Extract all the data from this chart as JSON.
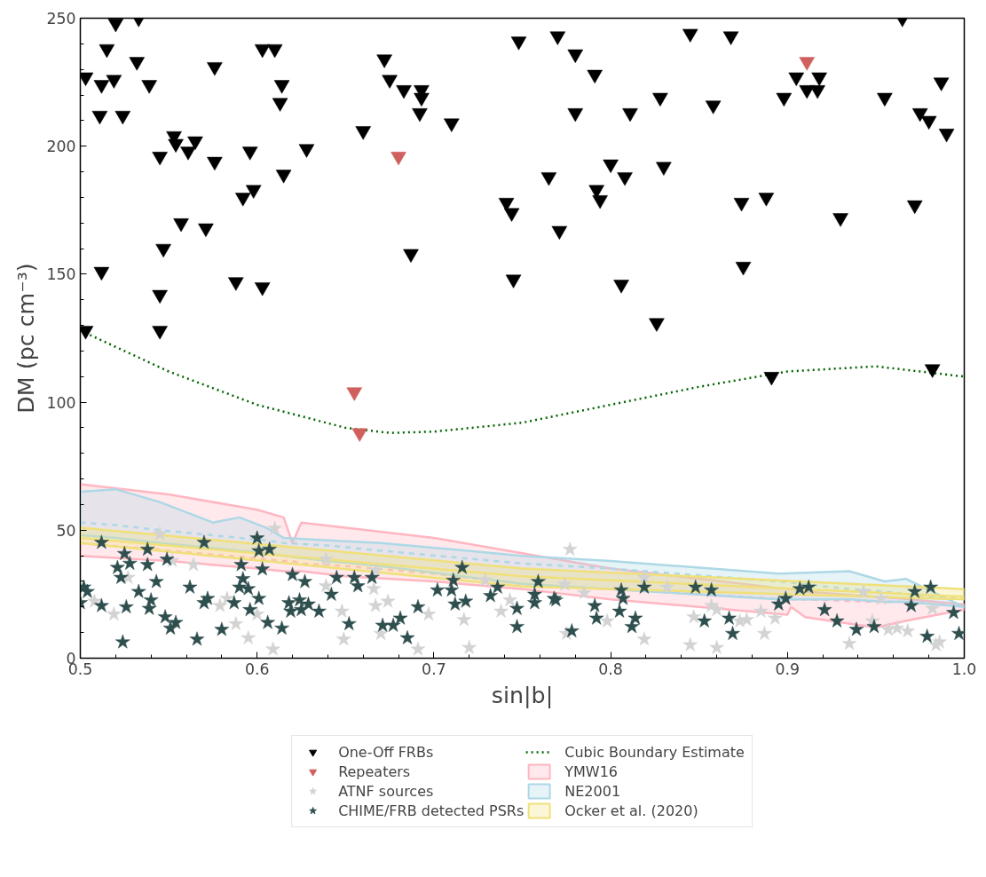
{
  "chart_data": {
    "type": "scatter",
    "xlabel": "sin|b|",
    "ylabel": "DM (pc cm⁻³)",
    "xlim": [
      0.5,
      1.0
    ],
    "xticks": [
      {
        "value": 0.5,
        "label": "0.5"
      },
      {
        "value": 0.6,
        "label": "0.6"
      },
      {
        "value": 0.7,
        "label": "0.7"
      },
      {
        "value": 0.8,
        "label": "0.8"
      },
      {
        "value": 0.9,
        "label": "0.9"
      },
      {
        "value": 1.0,
        "label": "1.0"
      }
    ],
    "ylim": [
      0,
      250
    ],
    "yticks": [
      0,
      50,
      100,
      150,
      200,
      250
    ],
    "grid": false,
    "legend": "bottom",
    "series": [
      {
        "name": "One-Off FRBs",
        "color": "#000000",
        "marker": "triangle",
        "x": [
          0.503,
          0.512,
          0.515,
          0.52,
          0.519,
          0.511,
          0.524,
          0.532,
          0.539,
          0.533,
          0.545,
          0.553,
          0.554,
          0.561,
          0.565,
          0.557,
          0.547,
          0.545,
          0.545,
          0.503,
          0.512,
          0.576,
          0.576,
          0.571,
          0.588,
          0.592,
          0.596,
          0.598,
          0.603,
          0.603,
          0.61,
          0.614,
          0.613,
          0.615,
          0.628,
          0.66,
          0.672,
          0.675,
          0.683,
          0.693,
          0.693,
          0.692,
          0.687,
          0.71,
          0.748,
          0.741,
          0.744,
          0.745,
          0.765,
          0.77,
          0.771,
          0.78,
          0.78,
          0.791,
          0.792,
          0.794,
          0.8,
          0.806,
          0.808,
          0.811,
          0.828,
          0.83,
          0.826,
          0.845,
          0.858,
          0.868,
          0.874,
          0.875,
          0.888,
          0.891,
          0.898,
          0.905,
          0.911,
          0.917,
          0.918,
          0.93,
          0.955,
          0.965,
          0.975,
          0.98,
          0.987,
          0.99,
          0.972,
          0.982
        ],
        "values": [
          227,
          224,
          238,
          248,
          226,
          212,
          212,
          233,
          224,
          250,
          196,
          204,
          201,
          198,
          202,
          170,
          160,
          142,
          128,
          128,
          151,
          231,
          194,
          168,
          147,
          180,
          198,
          183,
          145,
          238,
          238,
          224,
          217,
          189,
          199,
          206,
          234,
          226,
          222,
          222,
          219,
          213,
          158,
          209,
          241,
          178,
          174,
          148,
          188,
          243,
          167,
          236,
          213,
          228,
          183,
          179,
          193,
          146,
          188,
          213,
          219,
          192,
          131,
          244,
          216,
          243,
          178,
          153,
          180,
          110,
          219,
          227,
          222,
          222,
          227,
          172,
          219,
          250,
          213,
          210,
          225,
          205,
          177,
          113
        ]
      },
      {
        "name": "Repeaters",
        "color": "#d0605e",
        "marker": "triangle",
        "x": [
          0.68,
          0.655,
          0.658,
          0.911
        ],
        "values": [
          196,
          104,
          88,
          233
        ]
      },
      {
        "name": "ATNF sources",
        "color": "#d3d3d3",
        "marker": "star",
        "x": [
          0.545,
          0.564,
          0.61,
          0.639,
          0.519,
          0.527,
          0.508,
          0.552,
          0.579,
          0.583,
          0.588,
          0.595,
          0.6,
          0.609,
          0.639,
          0.648,
          0.649,
          0.666,
          0.667,
          0.674,
          0.67,
          0.691,
          0.697,
          0.717,
          0.72,
          0.667,
          0.729,
          0.743,
          0.738,
          0.777,
          0.819,
          0.832,
          0.774,
          0.785,
          0.798,
          0.819,
          0.847,
          0.845,
          0.86,
          0.857,
          0.86,
          0.873,
          0.877,
          0.885,
          0.893,
          0.887,
          0.943,
          0.953,
          0.948,
          0.935,
          0.957,
          0.962,
          0.968,
          0.982,
          0.984,
          0.986,
          0.775
        ],
        "values": [
          48.5,
          36.5,
          50.7,
          38.6,
          17.2,
          31.5,
          22.2,
          38.1,
          20.5,
          23.3,
          13.4,
          7.9,
          17.2,
          3.5,
          28.2,
          18.3,
          7.4,
          27.1,
          20.5,
          22.2,
          9.6,
          3.5,
          17.2,
          15.0,
          4.1,
          34.3,
          30.4,
          22.7,
          18.3,
          42.5,
          31.5,
          27.7,
          28.8,
          25.5,
          14.5,
          7.4,
          16.1,
          5.2,
          4.1,
          20.5,
          18.9,
          14.5,
          15.0,
          18.3,
          15.6,
          9.6,
          26.0,
          23.3,
          14.5,
          5.7,
          11.2,
          11.7,
          10.6,
          19.4,
          5.2,
          6.3,
          9.6
        ]
      },
      {
        "name": "CHIME/FRB detected PSRs",
        "color": "#2f4f4f",
        "marker": "star",
        "x": [
          0.512,
          0.525,
          0.538,
          0.549,
          0.57,
          0.6,
          0.601,
          0.607,
          0.603,
          0.591,
          0.521,
          0.528,
          0.538,
          0.523,
          0.543,
          0.562,
          0.533,
          0.54,
          0.526,
          0.512,
          0.502,
          0.504,
          0.5,
          0.539,
          0.548,
          0.554,
          0.551,
          0.58,
          0.566,
          0.524,
          0.592,
          0.59,
          0.595,
          0.587,
          0.572,
          0.57,
          0.596,
          0.601,
          0.606,
          0.614,
          0.62,
          0.627,
          0.618,
          0.624,
          0.619,
          0.625,
          0.629,
          0.635,
          0.642,
          0.645,
          0.655,
          0.657,
          0.665,
          0.652,
          0.671,
          0.677,
          0.681,
          0.685,
          0.691,
          0.702,
          0.71,
          0.711,
          0.716,
          0.712,
          0.718,
          0.732,
          0.736,
          0.747,
          0.747,
          0.759,
          0.757,
          0.757,
          0.768,
          0.769,
          0.778,
          0.791,
          0.792,
          0.805,
          0.814,
          0.812,
          0.806,
          0.807,
          0.819,
          0.848,
          0.857,
          0.853,
          0.867,
          0.869,
          0.895,
          0.899,
          0.907,
          0.912,
          0.921,
          0.928,
          0.939,
          0.949,
          0.972,
          0.97,
          0.981,
          0.979,
          0.994,
          0.997
        ],
        "values": [
          45.2,
          40.8,
          42.5,
          38.6,
          45.2,
          46.9,
          41.9,
          42.5,
          34.8,
          36.5,
          35.4,
          37.0,
          36.5,
          31.5,
          29.9,
          27.7,
          26.0,
          22.7,
          20.0,
          20.5,
          27.7,
          26.0,
          21.6,
          19.4,
          16.1,
          13.9,
          11.7,
          11.2,
          7.4,
          6.3,
          31.0,
          27.7,
          27.1,
          21.6,
          23.3,
          21.6,
          18.9,
          23.3,
          13.9,
          11.7,
          32.6,
          29.9,
          21.6,
          22.7,
          18.3,
          18.9,
          21.1,
          18.3,
          24.9,
          31.5,
          31.5,
          28.2,
          31.5,
          13.4,
          12.8,
          12.8,
          15.6,
          7.9,
          20.0,
          26.6,
          26.6,
          30.4,
          35.4,
          21.1,
          22.2,
          24.4,
          27.7,
          19.4,
          12.3,
          29.9,
          24.9,
          21.6,
          23.3,
          22.7,
          10.6,
          20.5,
          15.6,
          18.3,
          15.6,
          12.3,
          26.6,
          23.3,
          27.7,
          27.7,
          26.6,
          14.5,
          15.6,
          9.6,
          21.1,
          23.3,
          27.1,
          27.7,
          18.9,
          14.5,
          11.2,
          12.3,
          26.0,
          20.5,
          27.7,
          8.5,
          17.8,
          9.6
        ]
      },
      {
        "name": "Cubic Boundary Estimate",
        "type": "line",
        "color": "#006400",
        "line_style": "dotted",
        "marker": "none",
        "x": [
          0.5,
          0.55,
          0.6,
          0.65,
          0.675,
          0.7,
          0.75,
          0.8,
          0.85,
          0.9,
          0.95,
          1.0
        ],
        "values": [
          128,
          112,
          99,
          90,
          88,
          88.5,
          92,
          99,
          106,
          112,
          114,
          110
        ]
      },
      {
        "name": "YMW16",
        "type": "line",
        "color": "#ffb6c1",
        "line_style": "dashed",
        "marker": "none",
        "x": [
          0.5,
          0.55,
          0.6,
          0.615,
          0.62,
          0.625,
          0.65,
          0.7,
          0.75,
          0.8,
          0.85,
          0.9,
          0.902,
          0.91,
          0.95,
          0.97,
          1.0
        ],
        "values": [
          45,
          42,
          39,
          38,
          38,
          37,
          36,
          33,
          29,
          27,
          25,
          23,
          23,
          23,
          22,
          22,
          21
        ],
        "upper": [
          68,
          64,
          58,
          55,
          45,
          53,
          51,
          47,
          41,
          35,
          31,
          27,
          27,
          26,
          24,
          23,
          21
        ],
        "lower": [
          40,
          38,
          35,
          34,
          34,
          34,
          32,
          30,
          27,
          23,
          20,
          17,
          20,
          16,
          12,
          15,
          19
        ]
      },
      {
        "name": "NE2001",
        "type": "line",
        "color": "#add8e6",
        "line_style": "dashed",
        "marker": "none",
        "x": [
          0.5,
          0.52,
          0.545,
          0.575,
          0.59,
          0.605,
          0.615,
          0.64,
          0.67,
          0.75,
          0.8,
          0.895,
          0.935,
          0.955,
          0.967,
          1.0
        ],
        "values": [
          53,
          52,
          50,
          48,
          47,
          46,
          45,
          44,
          42,
          37,
          35,
          30,
          27,
          26,
          25,
          23
        ],
        "upper": [
          65,
          66,
          61,
          53,
          55,
          51,
          47,
          46,
          45,
          40,
          38,
          33,
          34,
          30,
          31,
          20
        ],
        "lower": [
          48,
          47,
          45,
          43,
          42,
          41,
          40,
          38,
          36,
          29,
          27,
          23,
          23,
          22,
          22,
          20
        ]
      },
      {
        "name": "Ocker et al. (2020)",
        "type": "line",
        "color": "#f0e07a",
        "line_style": "solid",
        "marker": "none",
        "x": [
          0.5,
          0.75,
          1.0
        ],
        "values": [
          47,
          32,
          24
        ],
        "upper": [
          51,
          35,
          27
        ],
        "lower": [
          45,
          28,
          23
        ]
      }
    ]
  }
}
